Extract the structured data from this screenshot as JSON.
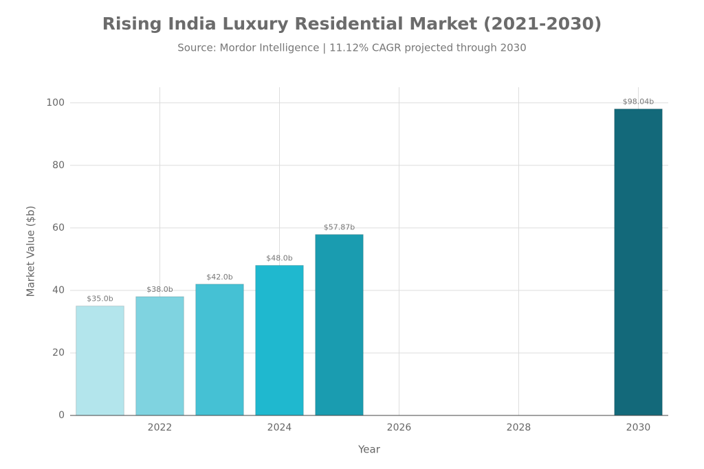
{
  "chart_data": {
    "type": "bar",
    "title": "Rising India Luxury Residential Market (2021-2030)",
    "subtitle": "Source: Mordor Intelligence | 11.12% CAGR projected through 2030",
    "x_label": "Year",
    "y_label": "Market Value ($b)",
    "x": [
      2021,
      2022,
      2023,
      2024,
      2025,
      2030
    ],
    "values": [
      35.0,
      38.0,
      42.0,
      48.0,
      57.87,
      98.04
    ],
    "value_labels": [
      "$35.0b",
      "$38.0b",
      "$42.0b",
      "$48.0b",
      "$57.87b",
      "$98.04b"
    ],
    "colors": [
      "#b3e5ec",
      "#7fd3e0",
      "#45c1d4",
      "#1fb8cf",
      "#1a9cb0",
      "#13697a"
    ],
    "xlim": [
      2020.5,
      2030.5
    ],
    "xticks": [
      2022,
      2024,
      2026,
      2028,
      2030
    ],
    "ylim": [
      0,
      105
    ],
    "yticks": [
      0,
      20,
      40,
      60,
      80,
      100
    ],
    "grid": true
  }
}
